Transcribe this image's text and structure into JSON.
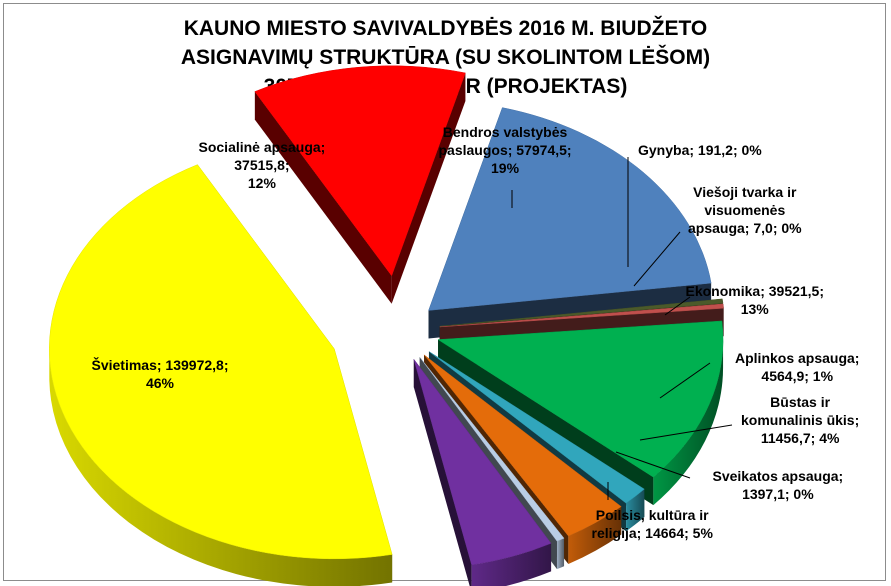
{
  "chart_data": {
    "type": "pie",
    "title_lines": [
      "KAUNO MIESTO SAVIVALDYBĖS 2016 M. BIUDŽETO",
      "ASIGNAVIMŲ STRUKTŪRA  (SU SKOLINTOM LĖŠOM)",
      "307265,5 TŪKST. EUR (PROJEKTAS)"
    ],
    "slices": [
      {
        "name": "Bendros valstybės paslaugos",
        "value": 57974.5,
        "percent": 19,
        "color": "#4f81bd",
        "label_lines": [
          "Bendros valstybės",
          "paslaugos; 57974,5;",
          "19%"
        ]
      },
      {
        "name": "Gynyba",
        "value": 191.2,
        "percent": 0,
        "color": "#4b5a2a",
        "label_lines": [
          "Gynyba; 191,2; 0%"
        ]
      },
      {
        "name": "Viešoji tvarka ir visuomenės apsauga",
        "value": 7.0,
        "percent": 0,
        "color": "#c0504d",
        "label_lines": [
          "Viešoji tvarka ir",
          "visuomenės",
          "apsauga; 7,0; 0%"
        ]
      },
      {
        "name": "Ekonomika",
        "value": 39521.5,
        "percent": 13,
        "color": "#00b050",
        "label_lines": [
          "Ekonomika; 39521,5;",
          "13%"
        ]
      },
      {
        "name": "Aplinkos apsauga",
        "value": 4564.9,
        "percent": 1,
        "color": "#31a6bc",
        "label_lines": [
          "Aplinkos apsauga;",
          "4564,9; 1%"
        ]
      },
      {
        "name": "Būstas ir komunalinis ūkis",
        "value": 11456.7,
        "percent": 4,
        "color": "#e46c0a",
        "label_lines": [
          "Būstas ir",
          "komunalinis ūkis;",
          "11456,7; 4%"
        ]
      },
      {
        "name": "Sveikatos apsauga",
        "value": 1397.1,
        "percent": 0,
        "color": "#b9cde5",
        "label_lines": [
          "Sveikatos apsauga;",
          "1397,1; 0%"
        ]
      },
      {
        "name": "Poilsis, kultūra ir religija",
        "value": 14664,
        "percent": 5,
        "color": "#7030a0",
        "label_lines": [
          "Poilsis, kultūra ir",
          "religija; 14664; 5%"
        ]
      },
      {
        "name": "Švietimas",
        "value": 139972.8,
        "percent": 46,
        "color": "#ffff00",
        "label_lines": [
          "Švietimas; 139972,8;",
          "46%"
        ]
      },
      {
        "name": "Socialinė apsauga",
        "value": 37515.8,
        "percent": 12,
        "color": "#ff0000",
        "label_lines": [
          "Socialinė apsauga;",
          "37515,8;",
          "12%"
        ]
      }
    ],
    "style": "3d-exploded-pie"
  }
}
